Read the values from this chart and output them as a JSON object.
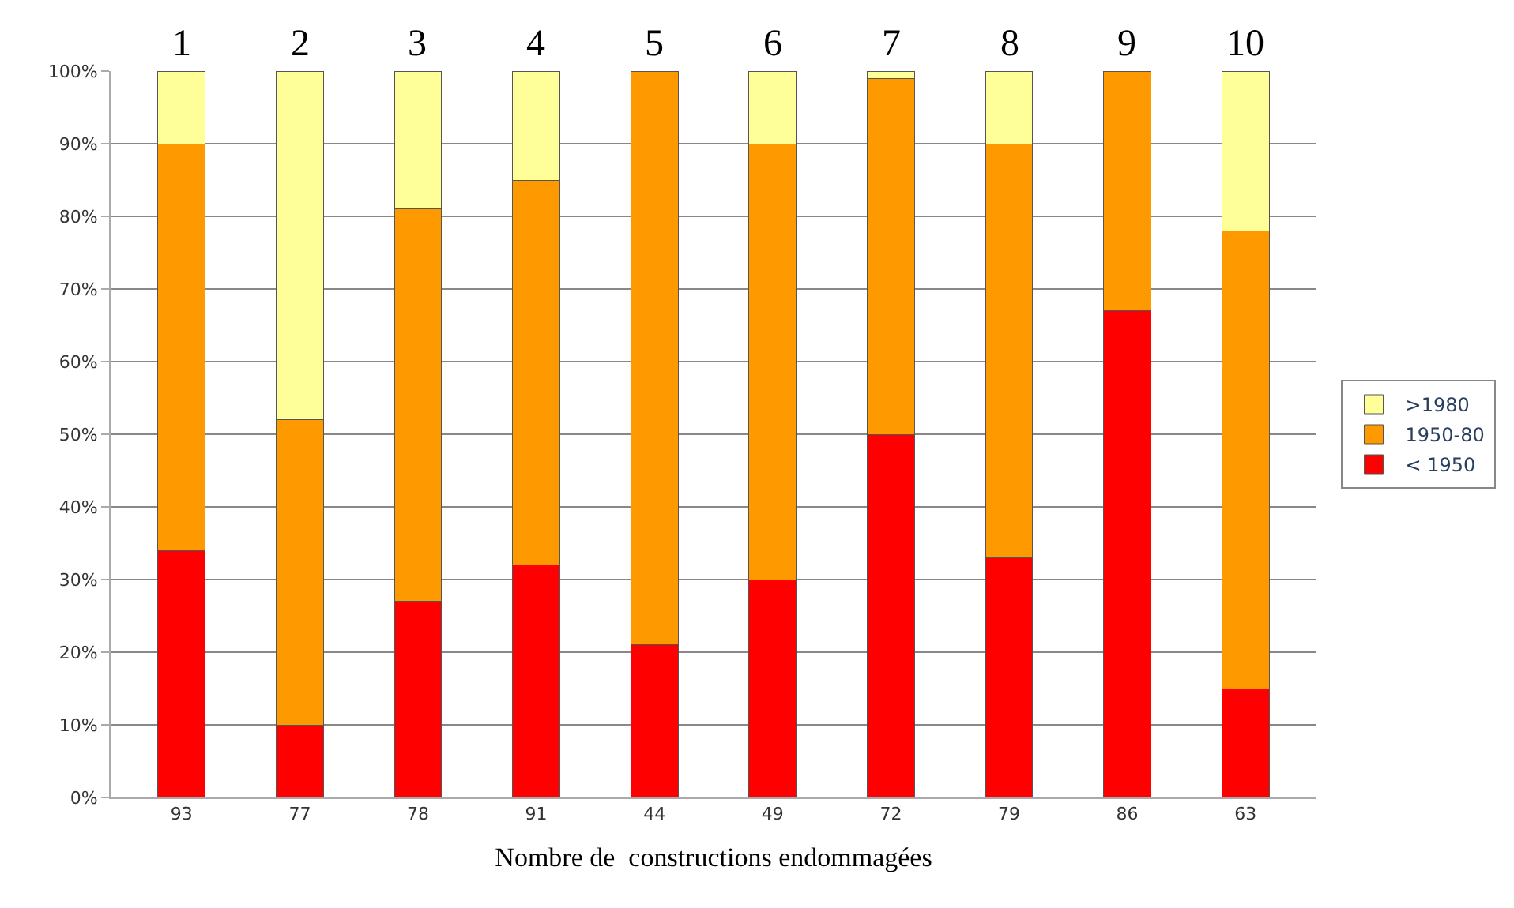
{
  "chart_data": {
    "type": "bar",
    "stacked": true,
    "xlabel": "Nombre de  constructions endommagées",
    "categories": [
      "93",
      "77",
      "78",
      "91",
      "44",
      "49",
      "72",
      "79",
      "86",
      "63"
    ],
    "series": [
      {
        "name": "< 1950",
        "color": "#ff0000",
        "values": [
          34,
          10,
          27,
          32,
          21,
          30,
          50,
          33,
          67,
          15
        ]
      },
      {
        "name": "1950-80",
        "color": "#ff9900",
        "values": [
          56,
          42,
          54,
          53,
          79,
          60,
          49,
          57,
          33,
          63
        ]
      },
      {
        "name": ">1980",
        "color": "#ffff99",
        "values": [
          10,
          48,
          19,
          15,
          null,
          10,
          1,
          10,
          null,
          22
        ]
      }
    ],
    "ylim": [
      0,
      100
    ],
    "yticks": [
      {
        "value": 0,
        "label": "0%"
      },
      {
        "value": 10,
        "label": "10%"
      },
      {
        "value": 20,
        "label": "20%"
      },
      {
        "value": 30,
        "label": "30%"
      },
      {
        "value": 40,
        "label": "40%"
      },
      {
        "value": 50,
        "label": "50%"
      },
      {
        "value": 60,
        "label": "60%"
      },
      {
        "value": 70,
        "label": "70%"
      },
      {
        "value": 80,
        "label": "80%"
      },
      {
        "value": 90,
        "label": "90%"
      },
      {
        "value": 100,
        "label": "100%"
      }
    ],
    "grid": "y",
    "legend": "right",
    "annotations": [
      {
        "text": "1",
        "x": "93",
        "y": 100
      },
      {
        "text": "2",
        "x": "77",
        "y": 100
      },
      {
        "text": "3",
        "x": "78",
        "y": 100
      },
      {
        "text": "4",
        "x": "91",
        "y": 100
      },
      {
        "text": "5",
        "x": "44",
        "y": 100
      },
      {
        "text": "6",
        "x": "49",
        "y": 100
      },
      {
        "text": "7",
        "x": "72",
        "y": 100
      },
      {
        "text": "8",
        "x": "79",
        "y": 100
      },
      {
        "text": "9",
        "x": "86",
        "y": 100
      },
      {
        "text": "10",
        "x": "63",
        "y": 100
      }
    ]
  }
}
